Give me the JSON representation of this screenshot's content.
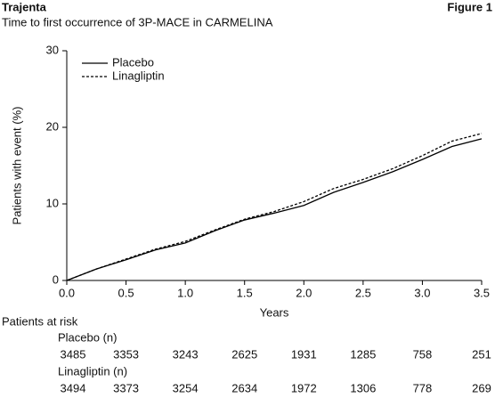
{
  "header": {
    "brand": "Trajenta",
    "figure": "Figure 1"
  },
  "chart_data": {
    "type": "line",
    "title": "Time to first occurrence of 3P-MACE in CARMELINA",
    "x_label": "Years",
    "y_label": "Patients with event (%)",
    "x": [
      0,
      0.25,
      0.5,
      0.75,
      1.0,
      1.25,
      1.5,
      1.75,
      2.0,
      2.25,
      2.5,
      2.75,
      3.0,
      3.25,
      3.5
    ],
    "series": [
      {
        "name": "Placebo",
        "color": "#000000",
        "dash": "solid",
        "values": [
          0,
          1.5,
          2.7,
          4.0,
          4.9,
          6.5,
          7.9,
          8.8,
          9.8,
          11.5,
          12.8,
          14.2,
          15.8,
          17.5,
          18.5
        ]
      },
      {
        "name": "Linagliptin",
        "color": "#000000",
        "dash": "dashed",
        "values": [
          0,
          1.5,
          2.8,
          4.1,
          5.1,
          6.6,
          8.0,
          9.0,
          10.3,
          12.0,
          13.2,
          14.6,
          16.3,
          18.2,
          19.2
        ]
      }
    ],
    "xlim": [
      0,
      3.5
    ],
    "xticks": [
      {
        "value": 0,
        "label": "0.0"
      },
      0.5,
      {
        "value": 1,
        "label": "1.0"
      },
      1.5,
      {
        "value": 2,
        "label": "2.0"
      },
      2.5,
      {
        "value": 3,
        "label": "3.0"
      },
      3.5
    ],
    "ylim": [
      0,
      30
    ],
    "yticks": [
      0,
      10,
      20,
      30
    ],
    "grid": false,
    "legend": "upper-left"
  },
  "risk_table": {
    "title": "Patients at risk",
    "groups": [
      {
        "name": "Placebo (n)",
        "counts": [
          3485,
          3353,
          3243,
          2625,
          1931,
          1285,
          758,
          251
        ]
      },
      {
        "name": "Linagliptin (n)",
        "counts": [
          3494,
          3373,
          3254,
          2634,
          1972,
          1306,
          778,
          269
        ]
      }
    ]
  }
}
